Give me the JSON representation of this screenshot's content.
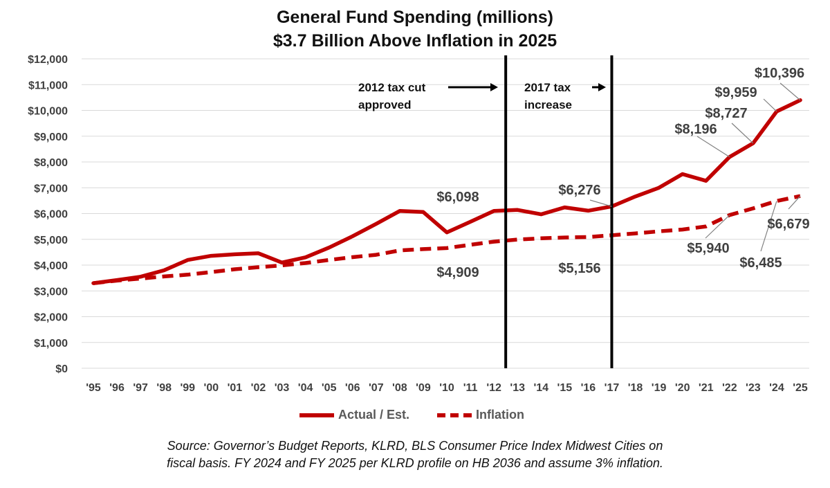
{
  "title_line1": "General Fund Spending (millions)",
  "title_line2": "$3.7 Billion Above Inflation in 2025",
  "legend": {
    "actual": "Actual / Est.",
    "inflation": "Inflation"
  },
  "source_line1": "Source: Governor’s Budget Reports, KLRD, BLS Consumer Price Index Midwest Cities on",
  "source_line2": "fiscal basis.  FY 2024 and FY 2025 per KLRD profile on HB 2036 and assume 3% inflation.",
  "colors": {
    "series": "#c00000",
    "grid": "#d9d9d9",
    "text": "#404040"
  },
  "chart_data": {
    "type": "line",
    "x": [
      "'95",
      "'96",
      "'97",
      "'98",
      "'99",
      "'00",
      "'01",
      "'02",
      "'03",
      "'04",
      "'05",
      "'06",
      "'07",
      "'08",
      "'09",
      "'10",
      "'11",
      "'12",
      "'13",
      "'14",
      "'15",
      "'16",
      "'17",
      "'18",
      "'19",
      "'20",
      "'21",
      "'22",
      "'23",
      "'24",
      "'25"
    ],
    "ylim": [
      0,
      12000
    ],
    "yticks": [
      "$0",
      "$1,000",
      "$2,000",
      "$3,000",
      "$4,000",
      "$5,000",
      "$6,000",
      "$7,000",
      "$8,000",
      "$9,000",
      "$10,000",
      "$11,000",
      "$12,000"
    ],
    "grid": true,
    "legend_position": "bottom",
    "series": [
      {
        "name": "Actual / Est.",
        "style": "solid",
        "values": [
          3300,
          3420,
          3550,
          3800,
          4200,
          4360,
          4420,
          4460,
          4100,
          4300,
          4680,
          5120,
          5600,
          6098,
          6060,
          5270,
          5680,
          6100,
          6140,
          5970,
          6240,
          6110,
          6276,
          6660,
          7000,
          7530,
          7270,
          8196,
          8727,
          9959,
          10396
        ]
      },
      {
        "name": "Inflation",
        "style": "dashed",
        "values": [
          3300,
          3400,
          3480,
          3560,
          3630,
          3730,
          3840,
          3920,
          3990,
          4080,
          4200,
          4310,
          4400,
          4570,
          4620,
          4660,
          4790,
          4909,
          4990,
          5040,
          5070,
          5090,
          5156,
          5230,
          5310,
          5380,
          5500,
          5940,
          6200,
          6485,
          6679
        ]
      }
    ],
    "annotations": [
      {
        "text": "$6,098",
        "series": 0,
        "year": "'08"
      },
      {
        "text": "$4,909",
        "series": 1,
        "year": "'12"
      },
      {
        "text": "$6,276",
        "series": 0,
        "year": "'17"
      },
      {
        "text": "$5,156",
        "series": 1,
        "year": "'17"
      },
      {
        "text": "$8,196",
        "series": 0,
        "year": "'22"
      },
      {
        "text": "$8,727",
        "series": 0,
        "year": "'23"
      },
      {
        "text": "$9,959",
        "series": 0,
        "year": "'24"
      },
      {
        "text": "$10,396",
        "series": 0,
        "year": "'25"
      },
      {
        "text": "$5,940",
        "series": 1,
        "year": "'22"
      },
      {
        "text": "$6,485",
        "series": 1,
        "year": "'24"
      },
      {
        "text": "$6,679",
        "series": 1,
        "year": "'25"
      }
    ],
    "events": [
      {
        "year": "'12.5",
        "label_lines": [
          "2012 tax cut",
          "approved"
        ]
      },
      {
        "year": "'17",
        "label_lines": [
          "2017 tax",
          "increase"
        ]
      }
    ]
  }
}
